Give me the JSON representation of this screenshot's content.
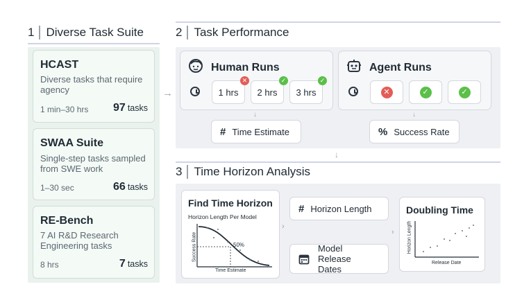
{
  "section1": {
    "number": "1",
    "title": "Diverse Task Suite"
  },
  "section2": {
    "number": "2",
    "title": "Task Performance"
  },
  "section3": {
    "number": "3",
    "title": "Time Horizon Analysis"
  },
  "tasks": [
    {
      "name": "HCAST",
      "description": "Diverse tasks that require agency",
      "duration": "1 min–30 hrs",
      "count": "97",
      "unit": "tasks"
    },
    {
      "name": "SWAA Suite",
      "description": "Single-step tasks sampled from SWE work",
      "duration": "1–30 sec",
      "count": "66",
      "unit": "tasks"
    },
    {
      "name": "RE-Bench",
      "description": "7 AI R&D Research Engineering tasks",
      "duration": "8 hrs",
      "count": "7",
      "unit": "tasks"
    }
  ],
  "human_runs": {
    "title": "Human Runs",
    "icon": "human-face-icon",
    "runs": [
      {
        "label": "1 hrs",
        "status": "fail"
      },
      {
        "label": "2 hrs",
        "status": "success"
      },
      {
        "label": "3 hrs",
        "status": "success"
      }
    ],
    "output": {
      "symbol": "#",
      "label": "Time Estimate"
    }
  },
  "agent_runs": {
    "title": "Agent Runs",
    "icon": "robot-icon",
    "runs": [
      {
        "status": "fail"
      },
      {
        "status": "success"
      },
      {
        "status": "success"
      }
    ],
    "output": {
      "symbol": "%",
      "label": "Success Rate"
    }
  },
  "analysis": {
    "find": {
      "title": "Find Time Horizon",
      "subtitle": "Horizon Length Per Model",
      "ylabel": "Success Rate",
      "xlabel": "Time Estimate",
      "marker": "50%"
    },
    "horizon_length": {
      "symbol": "#",
      "label": "Horizon Length",
      "icon": "hash-icon"
    },
    "model_release": {
      "label": "Model Release Dates",
      "icon": "calendar-icon"
    },
    "doubling": {
      "title": "Doubling Time",
      "ylabel": "Horizon Length",
      "xlabel": "Release Date"
    }
  },
  "colors": {
    "green_panel": "#eaf2ee",
    "gray_panel": "#eef0f4",
    "success": "#5bbf4a",
    "fail": "#e35d57",
    "heading_line": "#cfd3e8"
  }
}
